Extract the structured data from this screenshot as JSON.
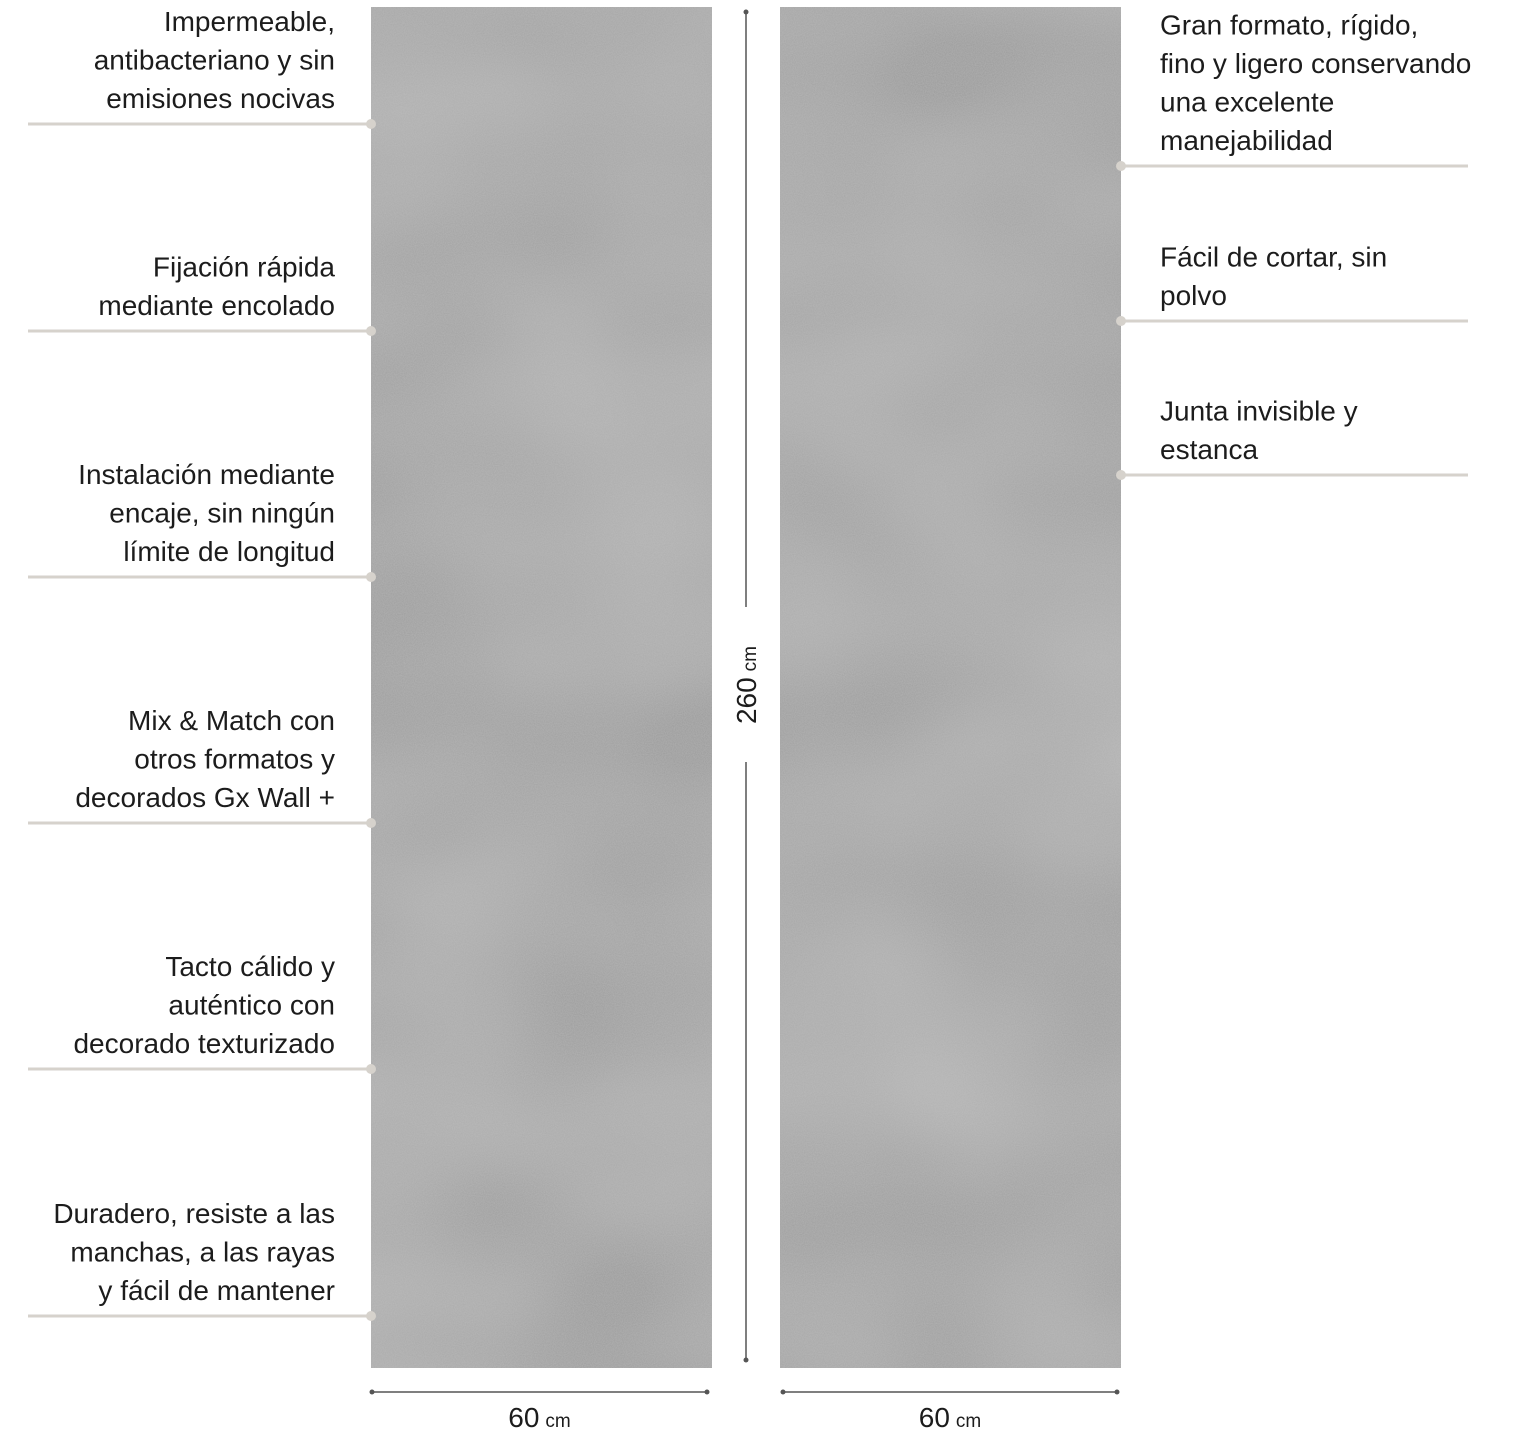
{
  "features_left": [
    {
      "lines": [
        "Impermeable,",
        "antibacteriano y sin",
        "emisiones nocivas"
      ]
    },
    {
      "lines": [
        "Fijación rápida",
        "mediante encolado"
      ]
    },
    {
      "lines": [
        "Instalación mediante",
        "encaje, sin ningún",
        "límite de longitud"
      ]
    },
    {
      "lines": [
        "Mix & Match con",
        "otros formatos y",
        "decorados Gx Wall +"
      ]
    },
    {
      "lines": [
        "Tacto cálido y",
        "auténtico con",
        "decorado texturizado"
      ]
    },
    {
      "lines": [
        "Duradero, resiste a las",
        "manchas, a las rayas",
        "y fácil de mantener"
      ]
    }
  ],
  "features_right": [
    {
      "lines": [
        "Gran formato, rígido,",
        "fino y ligero conservando",
        "una excelente",
        "manejabilidad"
      ]
    },
    {
      "lines": [
        "Fácil de cortar, sin",
        "polvo"
      ]
    },
    {
      "lines": [
        "Junta invisible y",
        "estanca"
      ]
    }
  ],
  "height_dimension": {
    "value": "260",
    "unit": "cm"
  },
  "width_dimensions": [
    {
      "value": "60",
      "unit": "cm"
    },
    {
      "value": "60",
      "unit": "cm"
    }
  ]
}
